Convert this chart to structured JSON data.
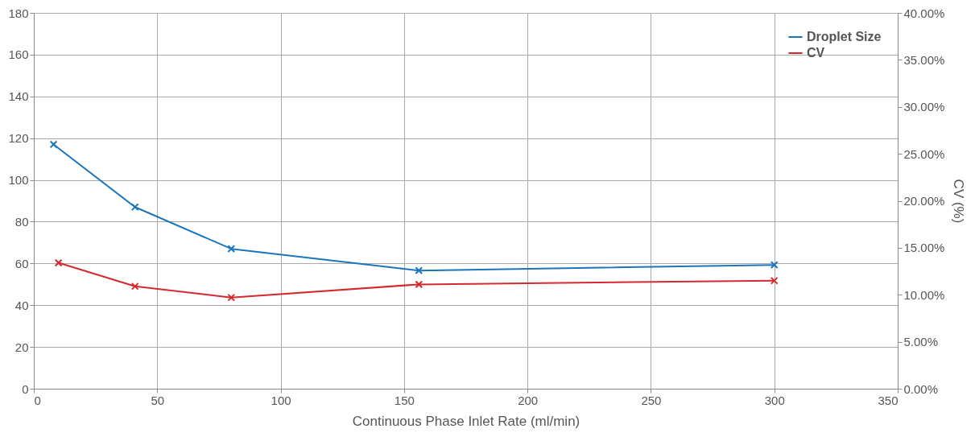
{
  "chart_data": {
    "type": "line",
    "xlabel": "Continuous Phase Inlet Rate (ml/min)",
    "y2label": "CV (%)",
    "xlim": [
      0,
      350
    ],
    "xticks": [
      0,
      50,
      100,
      150,
      200,
      250,
      300,
      350
    ],
    "ylim": [
      0,
      180
    ],
    "yticks": [
      0,
      20,
      40,
      60,
      80,
      100,
      120,
      140,
      160,
      180
    ],
    "y2lim": [
      0,
      40
    ],
    "y2ticks": [
      {
        "value": 0,
        "label": "0.00%"
      },
      {
        "value": 5,
        "label": "5.00%"
      },
      {
        "value": 10,
        "label": "10.00%"
      },
      {
        "value": 15,
        "label": "15.00%"
      },
      {
        "value": 20,
        "label": "20.00%"
      },
      {
        "value": 25,
        "label": "25.00%"
      },
      {
        "value": 30,
        "label": "30.00%"
      },
      {
        "value": 35,
        "label": "35.00%"
      },
      {
        "value": 40,
        "label": "40.00%"
      }
    ],
    "grid": true,
    "legend": "top right",
    "marker": "cross",
    "series": [
      {
        "name": "Droplet Size",
        "color": "#1a75bc",
        "x": [
          8,
          41,
          80,
          156,
          300
        ],
        "values": [
          117,
          87,
          67,
          56.6,
          59.3
        ]
      },
      {
        "name": "CV",
        "color": "#d42a2e",
        "axis": "y2",
        "x": [
          10,
          41,
          80,
          156,
          300
        ],
        "values": [
          13.4,
          10.9,
          9.7,
          11.1,
          11.5
        ]
      }
    ]
  }
}
